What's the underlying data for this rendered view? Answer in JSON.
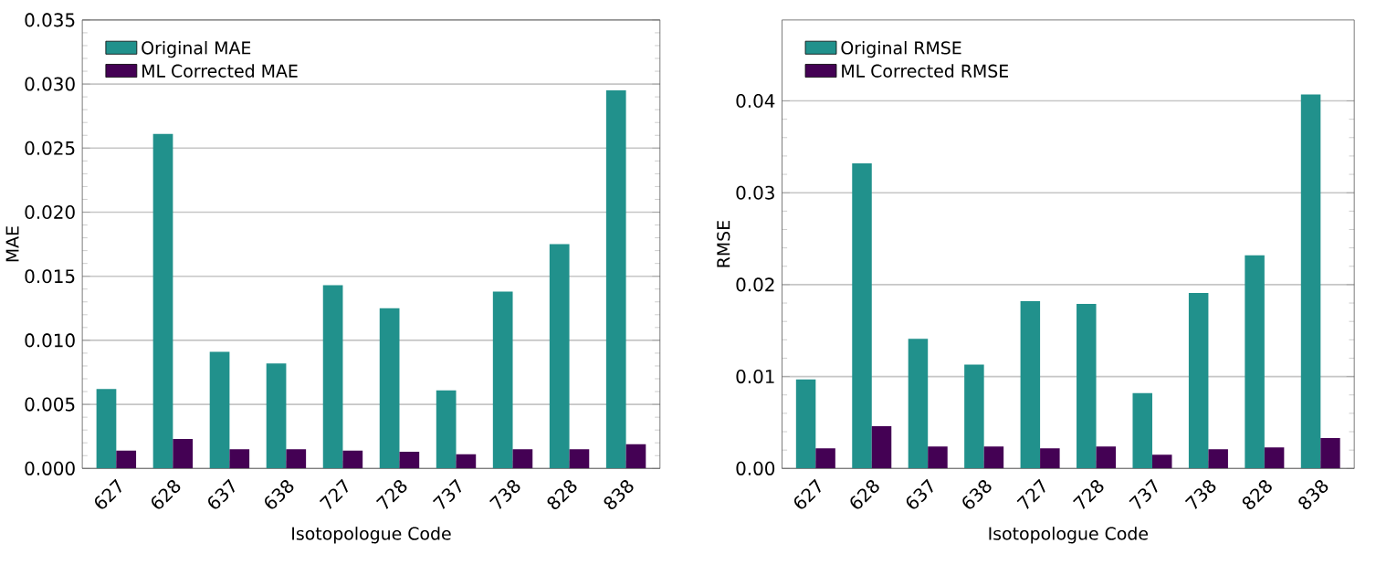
{
  "chart_data": [
    {
      "type": "bar",
      "xlabel": "Isotopologue Code",
      "ylabel": "MAE",
      "categories": [
        "627",
        "628",
        "637",
        "638",
        "727",
        "728",
        "737",
        "738",
        "828",
        "838"
      ],
      "series": [
        {
          "name": "Original MAE",
          "color": "#21918c",
          "values": [
            0.0062,
            0.0261,
            0.0091,
            0.0082,
            0.0143,
            0.0125,
            0.0061,
            0.0138,
            0.0175,
            0.0295
          ]
        },
        {
          "name": "ML Corrected MAE",
          "color": "#440154",
          "values": [
            0.0014,
            0.0023,
            0.0015,
            0.0015,
            0.0014,
            0.0013,
            0.0011,
            0.0015,
            0.0015,
            0.0019
          ]
        }
      ],
      "ylim": [
        0,
        0.035
      ],
      "yticks": [
        {
          "value": 0,
          "label": "0.000"
        },
        {
          "value": 0.005,
          "label": "0.005"
        },
        {
          "value": 0.01,
          "label": "0.010"
        },
        {
          "value": 0.015,
          "label": "0.015"
        },
        {
          "value": 0.02,
          "label": "0.020"
        },
        {
          "value": 0.025,
          "label": "0.025"
        },
        {
          "value": 0.03,
          "label": "0.030"
        },
        {
          "value": 0.035,
          "label": "0.035"
        }
      ],
      "grid": "y",
      "legend": "top left"
    },
    {
      "type": "bar",
      "xlabel": "Isotopologue Code",
      "ylabel": "RMSE",
      "categories": [
        "627",
        "628",
        "637",
        "638",
        "727",
        "728",
        "737",
        "738",
        "828",
        "838"
      ],
      "series": [
        {
          "name": "Original RMSE",
          "color": "#21918c",
          "values": [
            0.0097,
            0.0332,
            0.0141,
            0.0113,
            0.0182,
            0.0179,
            0.0082,
            0.0191,
            0.0232,
            0.0407
          ]
        },
        {
          "name": "ML Corrected RMSE",
          "color": "#440154",
          "values": [
            0.0022,
            0.0046,
            0.0024,
            0.0024,
            0.0022,
            0.0024,
            0.0015,
            0.0021,
            0.0023,
            0.0033
          ]
        }
      ],
      "ylim": [
        0,
        0.0488
      ],
      "yticks": [
        {
          "value": 0,
          "label": "0.00"
        },
        {
          "value": 0.01,
          "label": "0.01"
        },
        {
          "value": 0.02,
          "label": "0.02"
        },
        {
          "value": 0.03,
          "label": "0.03"
        },
        {
          "value": 0.04,
          "label": "0.04"
        }
      ],
      "grid": "y",
      "legend": "top left"
    }
  ]
}
